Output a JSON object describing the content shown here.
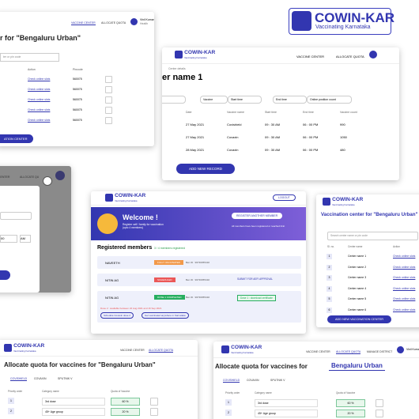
{
  "brand": {
    "name": "COWIN-KAR",
    "tagline": "Vaccinating Karnataka"
  },
  "centers_list_left": {
    "nav": [
      "VACCINE CENTER",
      "ALLOCATE QUOTA"
    ],
    "user": "Vinil Kumar",
    "role": "Health",
    "title": "r for \"Bengaluru Urban\"",
    "search": "ter or pin code",
    "columns": [
      "Action",
      "Pincode"
    ],
    "rows": [
      [
        "Check online slots",
        "560075"
      ],
      [
        "Check online slots",
        "560075"
      ],
      [
        "Check online slots",
        "560075"
      ],
      [
        "Check online slots",
        "560075"
      ],
      [
        "Check online slots",
        "560075"
      ]
    ],
    "button": "ATION CENTER"
  },
  "center_details": {
    "nav": [
      "VACCINE CENTER",
      "ALLOCATE QUOTA"
    ],
    "breadcrumb": "Center details",
    "title": "er name 1",
    "filters": [
      "Vaccine",
      "Start time",
      "End time",
      "Online position count"
    ],
    "columns": [
      "Date",
      "Vaccine name",
      "Start time",
      "End time",
      "Vaccine count"
    ],
    "rows": [
      [
        "27 May 2021",
        "Covishield",
        "09 : 30 AM",
        "06 : 00 PM",
        "990"
      ],
      [
        "27 May 2021",
        "Covaxin",
        "09 : 30 AM",
        "06 : 00 PM",
        "1050"
      ],
      [
        "28 May 2021",
        "Covaxin",
        "09 : 30 AM",
        "06 : 00 PM",
        "480"
      ]
    ],
    "button": "ADD NEW RECORD"
  },
  "modal_panel": {
    "nav": [
      "CENTER",
      "ALLOCATE QU"
    ],
    "time": "00",
    "period": "AM"
  },
  "dashboard": {
    "logout": "LOGOUT",
    "welcome": "Welcome !",
    "welcome_sub": "Register self / family for vaccination (upto 4 members)",
    "register_button": "REGISTER ANOTHER MEMBER",
    "register_note": "All members have been registered or reached limit",
    "heading": "Registered members",
    "count": "3 / 4 members registered",
    "members": [
      {
        "name": "NAVEETH",
        "status": "FULLY VACCINATED",
        "id": "Ben ID : 96730055432"
      },
      {
        "name": "NITIN AG",
        "status": "SCHEDULED",
        "id": "Ben ID : 96730055432",
        "action": "SUBMIT FOR AEFI APPROVAL"
      },
      {
        "name": "NITIN AG",
        "status": "DOSE 1 COMPLETED",
        "id": "Ben ID : 96730055432",
        "action": "Dose 1 : download certificate"
      }
    ],
    "dose_note": "Dose 2 : available between 22 Aug 2021 and 16 Sep 2021",
    "links": [
      "Schedule Covaxin dose 2",
      "Get vaccinated anywhere in Karnataka"
    ]
  },
  "centers_list_right": {
    "title": "Vaccination center for \"Bengaluru Urban\"",
    "search": "Search center name or pin code",
    "columns": [
      "Sl. no.",
      "Center name",
      "Action"
    ],
    "rows": [
      [
        "1",
        "Center name 1",
        "Check online slots"
      ],
      [
        "2",
        "Center name 2",
        "Check online slots"
      ],
      [
        "3",
        "Center name 3",
        "Check online slots"
      ],
      [
        "4",
        "Center name 4",
        "Check online slots"
      ],
      [
        "5",
        "Center name 5",
        "Check online slots"
      ],
      [
        "6",
        "Center name 6",
        "Check online slots"
      ]
    ],
    "button": "ADD NEW VACCINATION CENTER"
  },
  "quota_left": {
    "nav": [
      "VACCINE CENTER",
      "ALLOCATE QUOTA"
    ],
    "title": "Allocate quota for vaccines for \"Bengaluru Urban\"",
    "tabs": [
      "COVISHIELD",
      "COVAXIN",
      "SPUTNIK V"
    ],
    "columns": [
      "Priority order",
      "Category name",
      "Quota of Vaccine"
    ],
    "rows": [
      [
        "1",
        "3rd dose",
        "60 %"
      ],
      [
        "2",
        "45+ Age group",
        "20 %"
      ]
    ]
  },
  "quota_right": {
    "nav": [
      "VACCINE CENTER",
      "ALLOCATE QUOTA",
      "MANAGE DISTRICT"
    ],
    "user": "Vinil Kuma",
    "title": "Allocate quota for vaccines for",
    "district": "Bengaluru Urban",
    "tabs": [
      "COVISHIELD",
      "COVAXIN",
      "SPUTNIK V"
    ],
    "columns": [
      "Priority order",
      "Category name",
      "Quota of Vaccine"
    ],
    "rows": [
      [
        "1",
        "3rd dose",
        "60 %"
      ],
      [
        "2",
        "45+ Age group",
        "20 %"
      ]
    ]
  }
}
